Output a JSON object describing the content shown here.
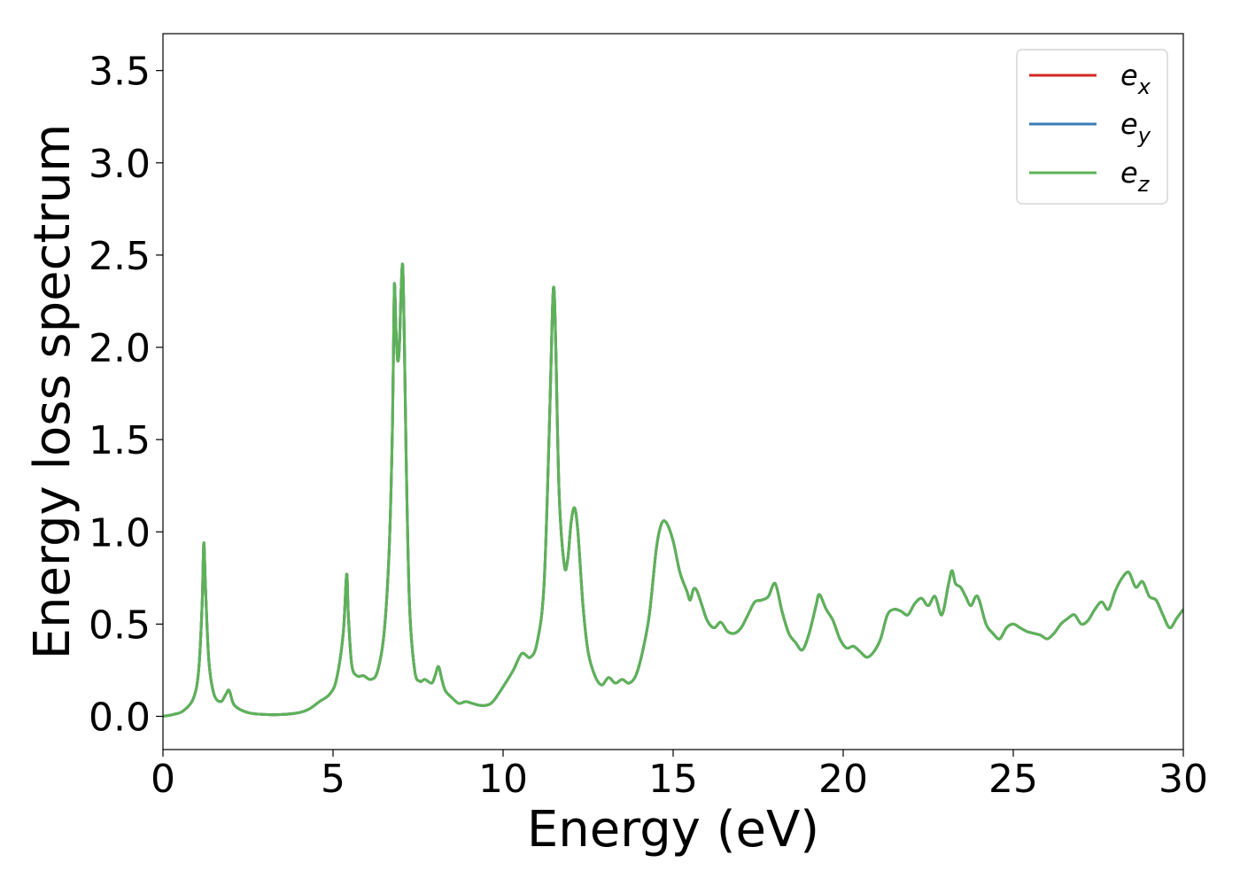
{
  "chart_data": {
    "type": "line",
    "title": "",
    "xlabel": "Energy (eV)",
    "ylabel": "Energy loss spectrum",
    "xlim": [
      0,
      30
    ],
    "ylim": [
      -0.18,
      3.7
    ],
    "xticks": [
      0,
      5,
      10,
      15,
      20,
      25,
      30
    ],
    "xtick_labels": [
      "0",
      "5",
      "10",
      "15",
      "20",
      "25",
      "30"
    ],
    "yticks": [
      0.0,
      0.5,
      1.0,
      1.5,
      2.0,
      2.5,
      3.0,
      3.5
    ],
    "ytick_labels": [
      "0.0",
      "0.5",
      "1.0",
      "1.5",
      "2.0",
      "2.5",
      "3.0",
      "3.5"
    ],
    "grid": false,
    "legend_position": "top-right",
    "legend": [
      {
        "base": "e",
        "sub": "x",
        "color": "#d62728"
      },
      {
        "base": "e",
        "sub": "y",
        "color": "#3a7db8"
      },
      {
        "base": "e",
        "sub": "z",
        "color": "#5cb357"
      }
    ],
    "series": [
      {
        "name": "e_x",
        "color": "#d62728",
        "ref": "curve"
      },
      {
        "name": "e_y",
        "color": "#3a7db8",
        "ref": "curve"
      },
      {
        "name": "e_z",
        "color": "#5cb357",
        "ref": "curve"
      }
    ],
    "curve": {
      "x": [
        0,
        0.3,
        0.6,
        0.9,
        1.05,
        1.15,
        1.2,
        1.25,
        1.35,
        1.5,
        1.7,
        1.85,
        1.95,
        2.1,
        2.5,
        3.0,
        3.5,
        4.0,
        4.3,
        4.6,
        4.9,
        5.1,
        5.3,
        5.4,
        5.45,
        5.55,
        5.7,
        5.9,
        6.1,
        6.3,
        6.5,
        6.65,
        6.75,
        6.8,
        6.85,
        6.9,
        6.95,
        7.0,
        7.05,
        7.1,
        7.15,
        7.25,
        7.4,
        7.55,
        7.7,
        7.9,
        8.0,
        8.1,
        8.2,
        8.3,
        8.5,
        8.7,
        8.9,
        9.1,
        9.3,
        9.5,
        9.7,
        10.0,
        10.3,
        10.55,
        10.8,
        11.0,
        11.2,
        11.35,
        11.45,
        11.5,
        11.55,
        11.65,
        11.8,
        11.9,
        12.0,
        12.1,
        12.2,
        12.35,
        12.5,
        12.7,
        12.9,
        13.1,
        13.3,
        13.5,
        13.7,
        13.9,
        14.1,
        14.3,
        14.5,
        14.65,
        14.8,
        15.0,
        15.2,
        15.4,
        15.5,
        15.6,
        15.7,
        15.85,
        16.0,
        16.2,
        16.4,
        16.6,
        16.8,
        17.0,
        17.2,
        17.4,
        17.6,
        17.8,
        18.0,
        18.2,
        18.4,
        18.6,
        18.8,
        19.0,
        19.2,
        19.3,
        19.5,
        19.7,
        19.9,
        20.1,
        20.3,
        20.5,
        20.7,
        20.9,
        21.1,
        21.3,
        21.5,
        21.7,
        21.9,
        22.1,
        22.3,
        22.5,
        22.7,
        22.9,
        23.1,
        23.2,
        23.3,
        23.45,
        23.6,
        23.75,
        23.9,
        24.0,
        24.2,
        24.4,
        24.6,
        24.8,
        25.0,
        25.2,
        25.4,
        25.6,
        25.8,
        26.0,
        26.2,
        26.4,
        26.6,
        26.8,
        27.0,
        27.2,
        27.4,
        27.6,
        27.8,
        28.0,
        28.2,
        28.4,
        28.6,
        28.8,
        29.0,
        29.2,
        29.4,
        29.6,
        29.8,
        30.0
      ],
      "y": [
        0.0,
        0.01,
        0.03,
        0.1,
        0.25,
        0.6,
        0.94,
        0.7,
        0.3,
        0.12,
        0.08,
        0.12,
        0.14,
        0.06,
        0.02,
        0.01,
        0.01,
        0.02,
        0.04,
        0.08,
        0.12,
        0.2,
        0.45,
        0.77,
        0.55,
        0.28,
        0.22,
        0.22,
        0.2,
        0.24,
        0.45,
        0.9,
        1.6,
        2.33,
        2.1,
        1.93,
        2.0,
        2.3,
        2.44,
        2.0,
        1.4,
        0.6,
        0.25,
        0.19,
        0.2,
        0.18,
        0.22,
        0.27,
        0.2,
        0.14,
        0.1,
        0.07,
        0.08,
        0.07,
        0.06,
        0.06,
        0.08,
        0.16,
        0.25,
        0.34,
        0.32,
        0.4,
        0.7,
        1.5,
        2.2,
        2.31,
        2.0,
        1.2,
        0.82,
        0.85,
        1.05,
        1.13,
        1.0,
        0.6,
        0.35,
        0.22,
        0.17,
        0.21,
        0.18,
        0.2,
        0.18,
        0.22,
        0.35,
        0.55,
        0.9,
        1.04,
        1.05,
        0.95,
        0.78,
        0.68,
        0.63,
        0.69,
        0.68,
        0.6,
        0.52,
        0.48,
        0.51,
        0.46,
        0.45,
        0.48,
        0.55,
        0.62,
        0.63,
        0.65,
        0.72,
        0.57,
        0.45,
        0.4,
        0.36,
        0.45,
        0.6,
        0.66,
        0.58,
        0.52,
        0.42,
        0.37,
        0.38,
        0.35,
        0.32,
        0.35,
        0.42,
        0.55,
        0.58,
        0.57,
        0.55,
        0.61,
        0.64,
        0.6,
        0.65,
        0.55,
        0.72,
        0.79,
        0.72,
        0.7,
        0.65,
        0.6,
        0.65,
        0.63,
        0.5,
        0.45,
        0.42,
        0.48,
        0.5,
        0.48,
        0.46,
        0.45,
        0.44,
        0.42,
        0.45,
        0.5,
        0.53,
        0.55,
        0.5,
        0.52,
        0.58,
        0.62,
        0.58,
        0.68,
        0.75,
        0.78,
        0.7,
        0.73,
        0.65,
        0.63,
        0.55,
        0.48,
        0.53,
        0.58
      ]
    }
  }
}
